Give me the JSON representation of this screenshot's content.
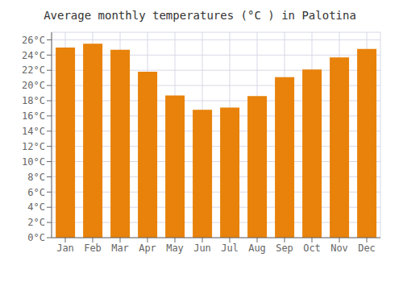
{
  "chart_data": {
    "type": "bar",
    "title": "Average monthly temperatures (°C ) in Palotina",
    "categories": [
      "Jan",
      "Feb",
      "Mar",
      "Apr",
      "May",
      "Jun",
      "Jul",
      "Aug",
      "Sep",
      "Oct",
      "Nov",
      "Dec"
    ],
    "values": [
      25.0,
      25.5,
      24.7,
      21.8,
      18.7,
      16.8,
      17.1,
      18.6,
      21.1,
      22.1,
      23.7,
      24.8
    ],
    "color": "#E8820A",
    "ylim": [
      0,
      27
    ],
    "yticks": [
      {
        "value": 0,
        "label": "0°C"
      },
      {
        "value": 2,
        "label": "2°C"
      },
      {
        "value": 4,
        "label": "4°C"
      },
      {
        "value": 6,
        "label": "6°C"
      },
      {
        "value": 8,
        "label": "8°C"
      },
      {
        "value": 10,
        "label": "10°C"
      },
      {
        "value": 12,
        "label": "12°C"
      },
      {
        "value": 14,
        "label": "14°C"
      },
      {
        "value": 16,
        "label": "16°C"
      },
      {
        "value": 18,
        "label": "18°C"
      },
      {
        "value": 20,
        "label": "20°C"
      },
      {
        "value": 22,
        "label": "22°C"
      },
      {
        "value": 24,
        "label": "24°C"
      },
      {
        "value": 26,
        "label": "26°C"
      }
    ],
    "grid": true
  }
}
